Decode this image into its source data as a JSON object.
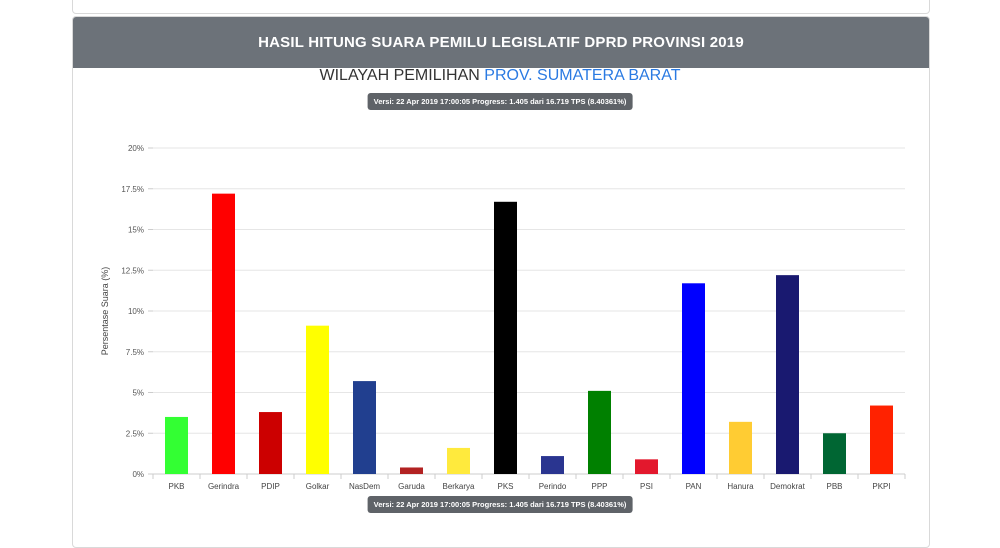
{
  "header": {
    "title": "HASIL HITUNG SUARA PEMILU LEGISLATIF DPRD PROVINSI 2019"
  },
  "region": {
    "prefix": "WILAYAH PEMILIHAN",
    "name": "PROV. SUMATERA BARAT"
  },
  "version_text": "Versi: 22 Apr 2019 17:00:05 Progress: 1.405 dari 16.719 TPS (8.40361%)",
  "chart_data": {
    "type": "bar",
    "title": "",
    "xlabel": "",
    "ylabel": "Persentase Suara (%)",
    "ylim": [
      0,
      20
    ],
    "yticks": [
      0,
      2.5,
      5,
      7.5,
      10,
      12.5,
      15,
      17.5,
      20
    ],
    "ytick_labels": [
      "0%",
      "2.5%",
      "5%",
      "7.5%",
      "10%",
      "12.5%",
      "15%",
      "17.5%",
      "20%"
    ],
    "grid": true,
    "categories": [
      "PKB",
      "Gerindra",
      "PDIP",
      "Golkar",
      "NasDem",
      "Garuda",
      "Berkarya",
      "PKS",
      "Perindo",
      "PPP",
      "PSI",
      "PAN",
      "Hanura",
      "Demokrat",
      "PBB",
      "PKPI"
    ],
    "values": [
      3.5,
      17.2,
      3.8,
      9.1,
      5.7,
      0.4,
      1.6,
      16.7,
      1.1,
      5.1,
      0.9,
      11.7,
      3.2,
      12.2,
      2.5,
      4.2
    ],
    "colors": [
      "#33ff33",
      "#ff0000",
      "#cc0000",
      "#ffff00",
      "#213f8f",
      "#b22222",
      "#ffea3d",
      "#000000",
      "#2a3590",
      "#008000",
      "#e3182d",
      "#0000ff",
      "#ffcc33",
      "#191970",
      "#006633",
      "#ff2200"
    ]
  }
}
